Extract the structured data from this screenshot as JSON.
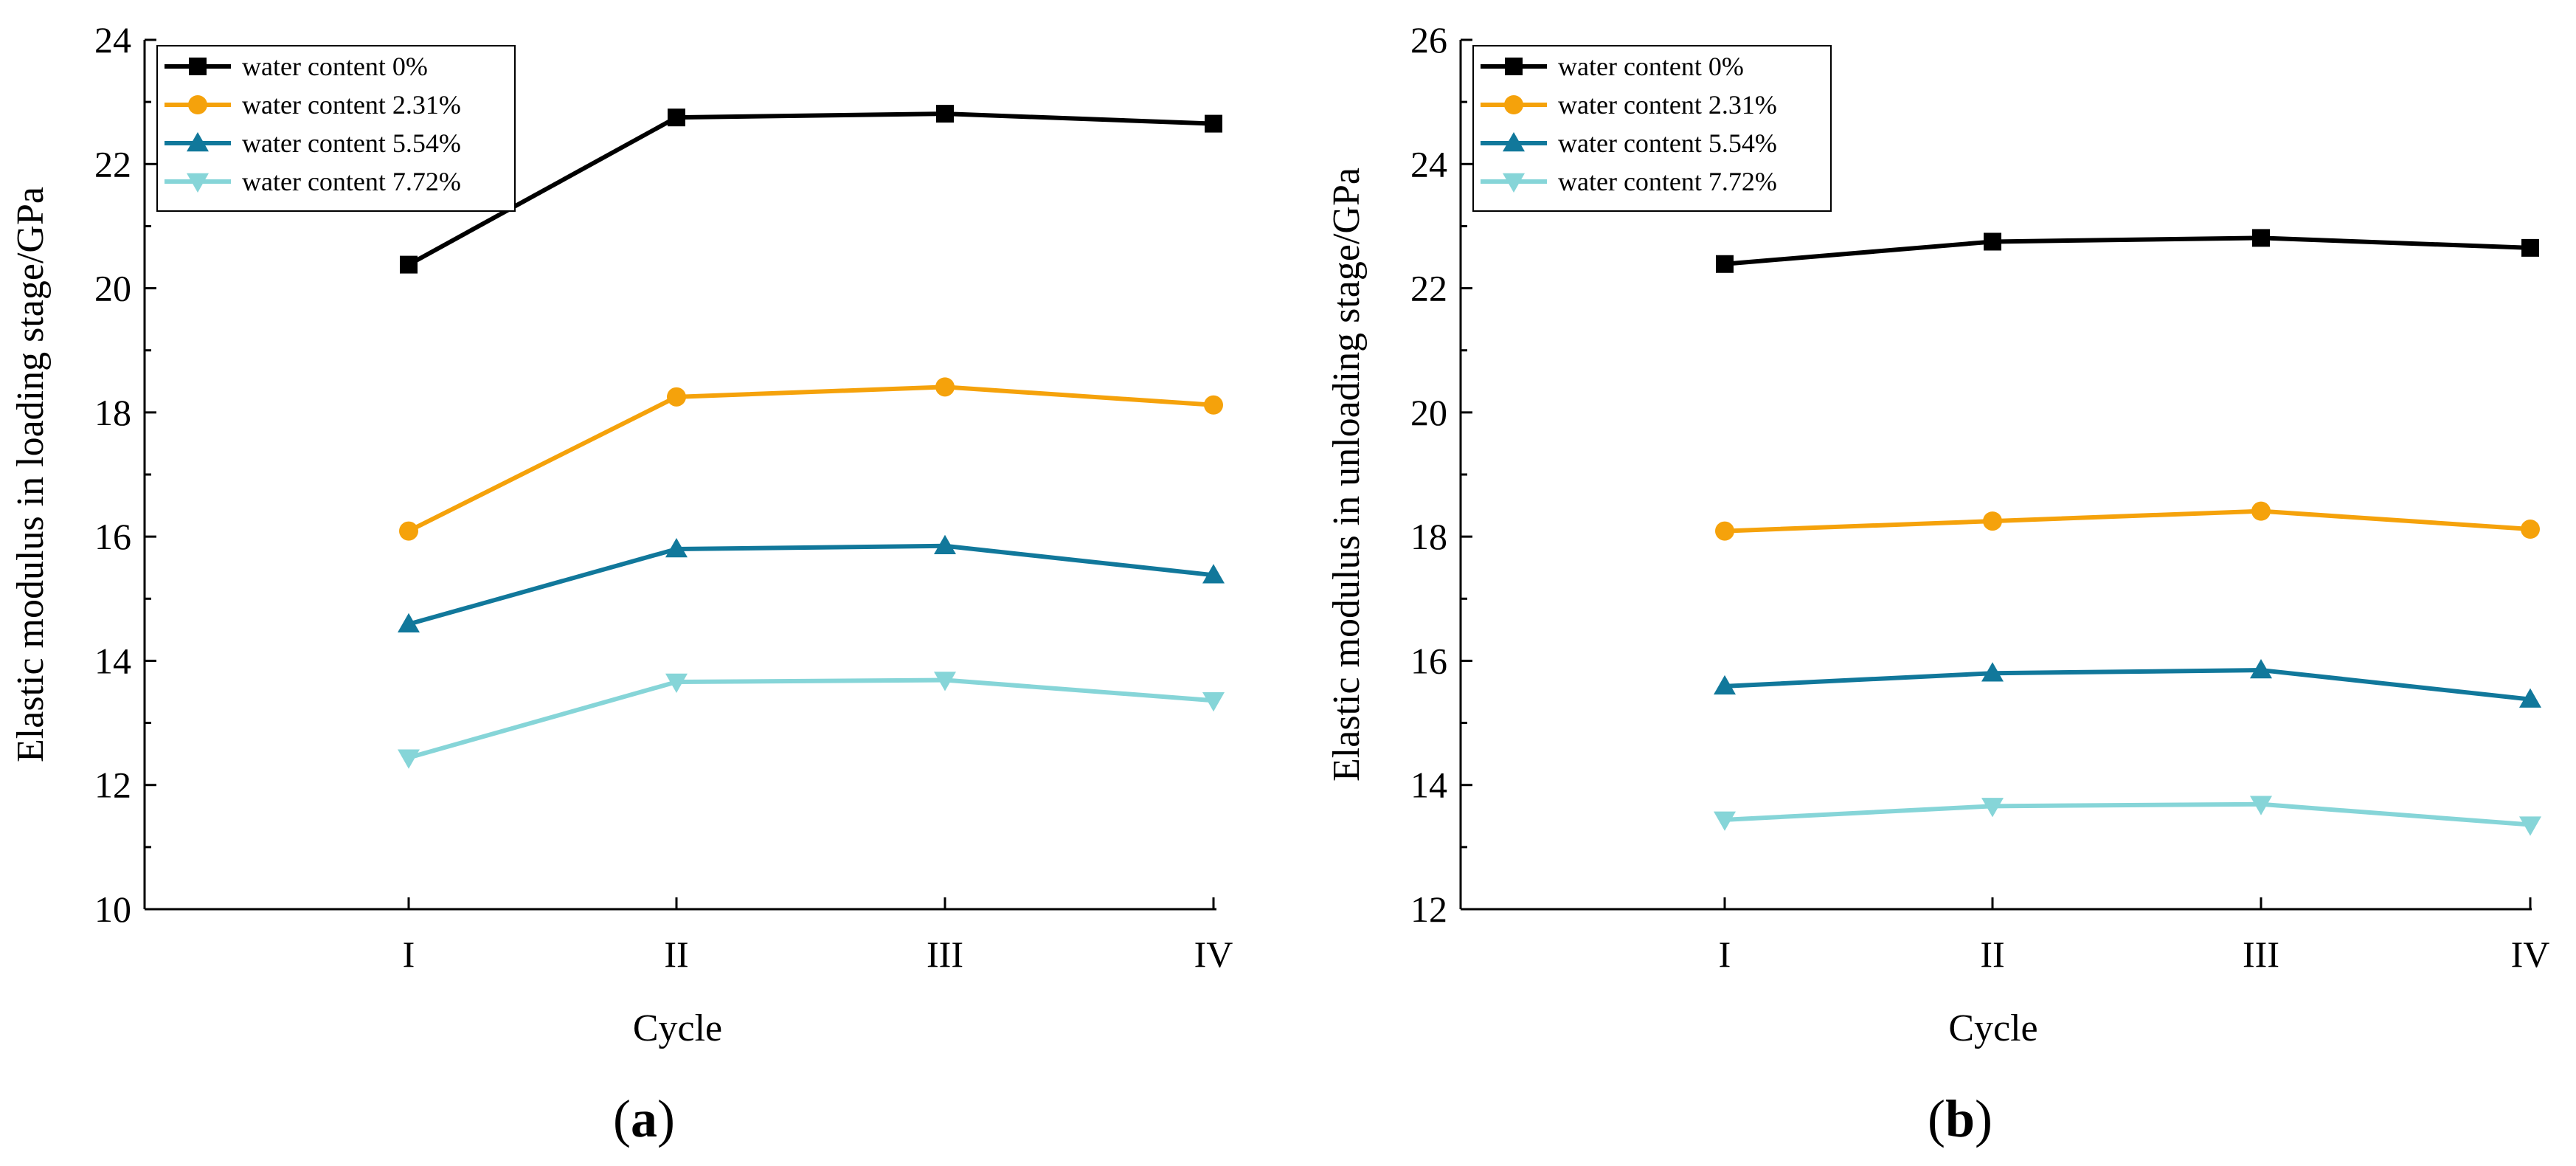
{
  "figure": {
    "panels": [
      "a",
      "b"
    ]
  },
  "chart_data": [
    {
      "id": "a",
      "type": "line",
      "panel_label": "a",
      "title": "",
      "xlabel": "Cycle",
      "ylabel": "Elastic modulus in loading stage/GPa",
      "categories": [
        "I",
        "II",
        "III",
        "IV"
      ],
      "ylim": [
        10,
        24
      ],
      "yticks": [
        10,
        12,
        14,
        16,
        18,
        20,
        22,
        24
      ],
      "grid": false,
      "legend_position": "top-left",
      "series": [
        {
          "name": "water content 0%",
          "color": "#000000",
          "marker": "square",
          "values": [
            20.38,
            22.75,
            22.81,
            22.65
          ]
        },
        {
          "name": "water content 2.31%",
          "color": "#F5A20B",
          "marker": "circle",
          "values": [
            16.09,
            18.25,
            18.41,
            18.12
          ]
        },
        {
          "name": "water content 5.54%",
          "color": "#11789B",
          "marker": "triangle-up",
          "values": [
            14.59,
            15.8,
            15.85,
            15.38
          ]
        },
        {
          "name": "water content 7.72%",
          "color": "#86D5D8",
          "marker": "triangle-down",
          "values": [
            12.44,
            13.66,
            13.69,
            13.36
          ]
        }
      ]
    },
    {
      "id": "b",
      "type": "line",
      "panel_label": "b",
      "title": "",
      "xlabel": "Cycle",
      "ylabel": "Elastic modulus in unloading stage/GPa",
      "categories": [
        "I",
        "II",
        "III",
        "IV"
      ],
      "ylim": [
        12,
        26
      ],
      "yticks": [
        12,
        14,
        16,
        18,
        20,
        22,
        24,
        26
      ],
      "grid": false,
      "legend_position": "top-left",
      "series": [
        {
          "name": "water content 0%",
          "color": "#000000",
          "marker": "square",
          "values": [
            22.39,
            22.75,
            22.81,
            22.65
          ]
        },
        {
          "name": "water content 2.31%",
          "color": "#F5A20B",
          "marker": "circle",
          "values": [
            18.09,
            18.25,
            18.41,
            18.12
          ]
        },
        {
          "name": "water content 5.54%",
          "color": "#11789B",
          "marker": "triangle-up",
          "values": [
            15.59,
            15.8,
            15.85,
            15.38
          ]
        },
        {
          "name": "water content 7.72%",
          "color": "#86D5D8",
          "marker": "triangle-down",
          "values": [
            13.44,
            13.66,
            13.69,
            13.36
          ]
        }
      ]
    }
  ]
}
